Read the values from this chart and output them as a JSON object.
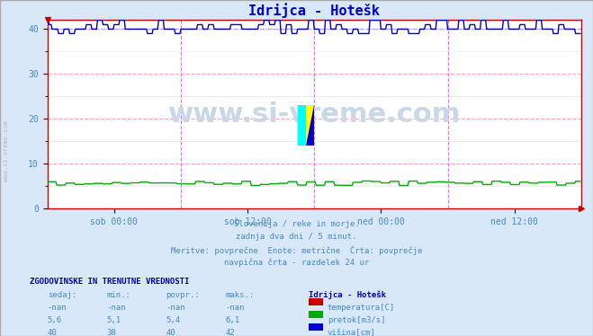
{
  "title": "Idrijca - Hotešk",
  "title_color": "#0000cc",
  "bg_color": "#d8e8f8",
  "plot_bg_color": "#ffffff",
  "grid_color": "#ffaaaa",
  "grid_minor_color": "#ffdddd",
  "axis_label_color": "#4488cc",
  "text_color": "#4488cc",
  "x_tick_labels": [
    "sob 00:00",
    "sob 12:00",
    "ned 00:00",
    "ned 12:00"
  ],
  "y_ticks": [
    0,
    10,
    20,
    30,
    40
  ],
  "ylim": [
    0,
    42
  ],
  "xlim": [
    0,
    576
  ],
  "vline_positions": [
    144,
    288,
    432,
    576
  ],
  "vline_color": "#ff66ff",
  "avg_line_value": 40,
  "avg_line_color": "#aaaaff",
  "watermark": "www.si-vreme.com",
  "watermark_color": "#c8d8e8",
  "subtitle_lines": [
    "Slovenija / reke in morje.",
    "zadnja dva dni / 5 minut.",
    "Meritve: povprečne  Enote: metrične  Črta: povprečje",
    "navpična črta - razdelek 24 ur"
  ],
  "table_header": "ZGODOVINSKE IN TRENUTNE VREDNOSTI",
  "col_headers": [
    "sedaj:",
    "min.:",
    "povpr.:",
    "maks.:"
  ],
  "col_header_color": "#4488cc",
  "rows": [
    [
      "-nan",
      "-nan",
      "-nan",
      "-nan"
    ],
    [
      "5,6",
      "5,1",
      "5,4",
      "6,1"
    ],
    [
      "40",
      "38",
      "40",
      "42"
    ]
  ],
  "legend_items": [
    {
      "label": "temperatura[C]",
      "color": "#cc0000"
    },
    {
      "label": "pretok[m3/s]",
      "color": "#00aa00"
    },
    {
      "label": "višina[cm]",
      "color": "#0000cc"
    }
  ],
  "legend_station": "Idrijca - Hotešk",
  "visina_data_value": 40,
  "pretok_data_value": 5.4,
  "left_label": "www.si-vreme.com",
  "left_label_color": "#aaaaaa"
}
